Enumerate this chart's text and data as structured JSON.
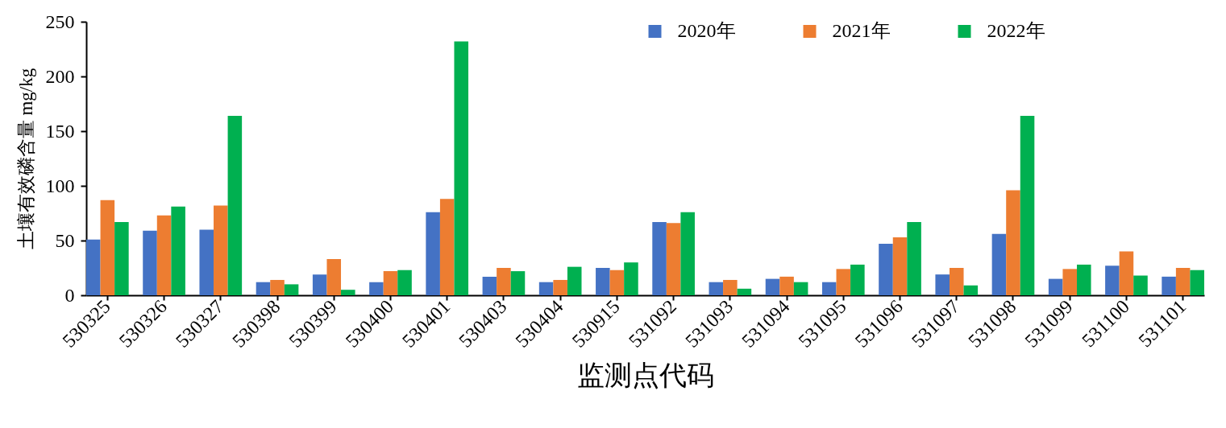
{
  "chart_data": {
    "type": "bar",
    "xlabel": "监测点代码",
    "ylabel": "土壤有效磷含量 mg/kg",
    "categories": [
      "530325",
      "530326",
      "530327",
      "530398",
      "530399",
      "530400",
      "530401",
      "530403",
      "530404",
      "530915",
      "531092",
      "531093",
      "531094",
      "531095",
      "531096",
      "531097",
      "531098",
      "531099",
      "531100",
      "531101"
    ],
    "series": [
      {
        "name": "2020年",
        "color": "#4472c4",
        "values": [
          51,
          59,
          60,
          12,
          19,
          12,
          76,
          17,
          12,
          25,
          67,
          12,
          15,
          12,
          47,
          19,
          56,
          15,
          27,
          17
        ]
      },
      {
        "name": "2021年",
        "color": "#ed7d31",
        "values": [
          87,
          73,
          82,
          14,
          33,
          22,
          88,
          25,
          14,
          23,
          66,
          14,
          17,
          24,
          53,
          25,
          96,
          24,
          40,
          25
        ]
      },
      {
        "name": "2022年",
        "color": "#00b050",
        "values": [
          67,
          81,
          164,
          10,
          5,
          23,
          232,
          22,
          26,
          30,
          76,
          6,
          12,
          28,
          67,
          9,
          164,
          28,
          18,
          23
        ]
      }
    ],
    "ylim": [
      0,
      250
    ],
    "yticks": [
      0,
      50,
      100,
      150,
      200,
      250
    ],
    "legend": "top right"
  }
}
